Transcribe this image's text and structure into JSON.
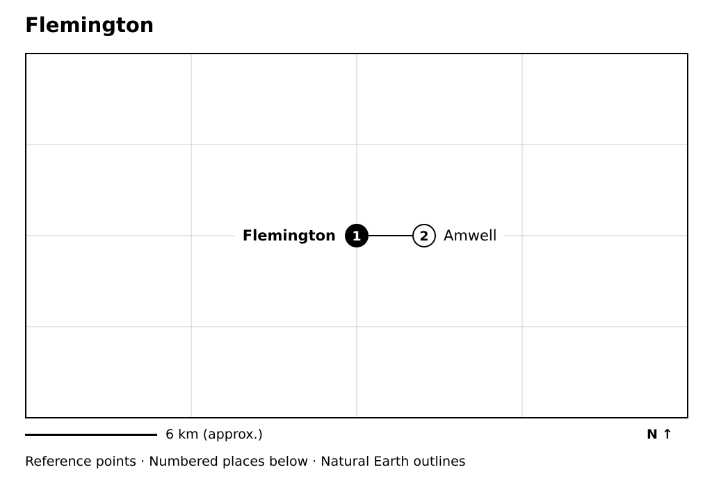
{
  "title": "Flemington",
  "map": {
    "grid_color": "#cccccc",
    "frame_color": "#000000",
    "places": [
      {
        "number": "1",
        "name": "Flemington",
        "primary": true,
        "marker_fill": "#000000",
        "marker_text": "#ffffff"
      },
      {
        "number": "2",
        "name": "Amwell",
        "primary": false,
        "marker_fill": "#ffffff",
        "marker_text": "#000000"
      }
    ]
  },
  "scale": {
    "label": "6 km (approx.)"
  },
  "north": {
    "letter": "N",
    "arrow": "↑",
    "icon": "north-arrow-icon"
  },
  "footer": {
    "text": "Reference points · Numbered places below · Natural Earth outlines"
  }
}
